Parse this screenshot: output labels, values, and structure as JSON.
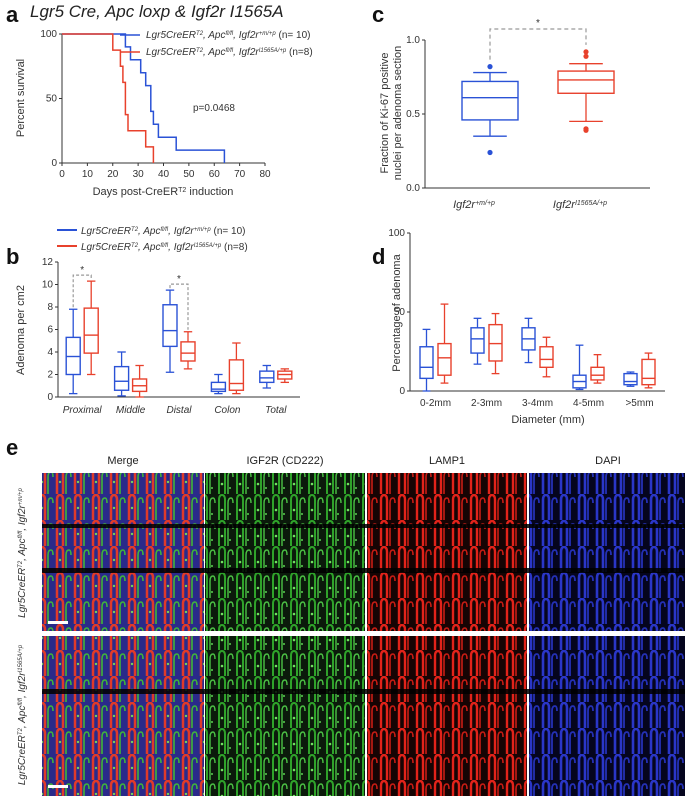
{
  "panel_a": {
    "letter": "a",
    "title": "Lgr5 Cre, Apc loxp & Igf2r I1565A",
    "ylabel": "Percent survival",
    "xlabel": "Days post-CreER",
    "xlabel_sup": "T2",
    "xlabel_suffix": " induction",
    "pvalue": "p=0.0468",
    "legend": [
      {
        "main": "Lgr5CreER",
        "sup1": "T2",
        "mid": ", Apc",
        "sup2": "fl/fl",
        "mid2": ", Igf2r",
        "sup3": "+m/+p",
        "tail": " (n= 10)",
        "color": "#2a52d6"
      },
      {
        "main": "Lgr5CreER",
        "sup1": "T2",
        "mid": ", Apc",
        "sup2": "fl/fl",
        "mid2": ", Igf2r",
        "sup3": "I1565A/+p",
        "tail": " (n=8)",
        "color": "#e8412c"
      }
    ]
  },
  "panel_b": {
    "letter": "b",
    "ylabel": "Adenoma per cm2",
    "legend": [
      {
        "main": "Lgr5CreER",
        "sup1": "T2",
        "mid": ", Apc",
        "sup2": "fl/fl",
        "mid2": ", Igf2r",
        "sup3": "+m/+p",
        "tail": " (n= 10)",
        "color": "#2a52d6"
      },
      {
        "main": "Lgr5CreER",
        "sup1": "T2",
        "mid": ", Apc",
        "sup2": "fl/fl",
        "mid2": ", Igf2r",
        "sup3": "I1565A/+p",
        "tail": " (n=8)",
        "color": "#e8412c"
      }
    ],
    "star": "*"
  },
  "panel_c": {
    "letter": "c",
    "ylabel_line1": "Fraction of Ki-67 positive",
    "ylabel_line2": "nuclei per adenoma section",
    "cat1_main": "Igf2r",
    "cat1_sup": "+m/+p",
    "cat2_main": "Igf2r",
    "cat2_sup": "I1565A/+p",
    "star": "*"
  },
  "panel_d": {
    "letter": "d",
    "ylabel": "Percentage of adenoma",
    "xlabel": "Diameter (mm)"
  },
  "panel_e": {
    "letter": "e",
    "columns": [
      "Merge",
      "IGF2R (CD222)",
      "LAMP1",
      "DAPI"
    ],
    "row_labels": [
      {
        "main": "Lgr5CreER",
        "sup1": "T2",
        "mid": ", Apc",
        "sup2": "fl/fl",
        "mid2": ", Igf2r",
        "sup3": "+m/+p"
      },
      {
        "main": "Lgr5CreER",
        "sup1": "T2",
        "mid": ", Apc",
        "sup2": "fl/fl",
        "mid2": ", Igf2r",
        "sup3": "I1565A/+p"
      }
    ]
  },
  "chart_data": [
    {
      "type": "line",
      "title": "Lgr5 Cre, Apc loxp & Igf2r I1565A",
      "xlabel": "Days post-CreERT2 induction",
      "ylabel": "Percent survival",
      "xlim": [
        0,
        80
      ],
      "ylim": [
        0,
        100
      ],
      "xticks": [
        0,
        10,
        20,
        30,
        40,
        50,
        60,
        70,
        80
      ],
      "yticks": [
        0,
        50,
        100
      ],
      "series": [
        {
          "name": "Lgr5CreERT2, Apcfl/fl, Igf2r+m/+p (n= 10)",
          "color": "#2a52d6",
          "steps": [
            [
              0,
              100
            ],
            [
              25,
              100
            ],
            [
              25,
              90
            ],
            [
              27,
              90
            ],
            [
              27,
              80
            ],
            [
              31,
              80
            ],
            [
              31,
              70
            ],
            [
              33,
              70
            ],
            [
              33,
              60
            ],
            [
              35,
              60
            ],
            [
              35,
              40
            ],
            [
              36,
              40
            ],
            [
              36,
              30
            ],
            [
              38,
              30
            ],
            [
              38,
              20
            ],
            [
              45,
              20
            ],
            [
              45,
              10
            ],
            [
              64,
              10
            ],
            [
              64,
              0
            ]
          ]
        },
        {
          "name": "Lgr5CreERT2, Apcfl/fl, Igf2rI1565A/+p (n=8)",
          "color": "#e8412c",
          "steps": [
            [
              0,
              100
            ],
            [
              20,
              100
            ],
            [
              20,
              87.5
            ],
            [
              23,
              87.5
            ],
            [
              23,
              75
            ],
            [
              24,
              75
            ],
            [
              24,
              62.5
            ],
            [
              25,
              62.5
            ],
            [
              25,
              37.5
            ],
            [
              26,
              37.5
            ],
            [
              26,
              25
            ],
            [
              33,
              25
            ],
            [
              33,
              12.5
            ],
            [
              36,
              12.5
            ],
            [
              36,
              0
            ]
          ]
        }
      ]
    },
    {
      "type": "box",
      "ylabel": "Adenoma per cm2",
      "categories": [
        "Proximal",
        "Middle",
        "Distal",
        "Colon",
        "Total"
      ],
      "ylim": [
        0,
        12
      ],
      "yticks": [
        0,
        2,
        4,
        6,
        8,
        10,
        12
      ],
      "series": [
        {
          "name": "Lgr5CreERT2, Apcfl/fl, Igf2r+m/+p (n= 10)",
          "color": "#2a52d6",
          "boxes": [
            [
              0.3,
              2.0,
              3.6,
              5.3,
              7.8
            ],
            [
              0.1,
              0.6,
              1.4,
              2.7,
              4.0
            ],
            [
              2.2,
              4.5,
              5.9,
              8.2,
              9.5
            ],
            [
              0.3,
              0.5,
              0.7,
              1.3,
              2.0
            ],
            [
              0.8,
              1.3,
              1.7,
              2.3,
              2.8
            ]
          ]
        },
        {
          "name": "Lgr5CreERT2, Apcfl/fl, Igf2rI1565A/+p (n=8)",
          "color": "#e8412c",
          "boxes": [
            [
              2.0,
              3.9,
              5.5,
              7.9,
              10.3
            ],
            [
              0.0,
              0.5,
              1.0,
              1.6,
              2.8
            ],
            [
              2.5,
              3.2,
              3.9,
              4.9,
              5.8
            ],
            [
              0.3,
              0.6,
              1.2,
              3.3,
              4.8
            ],
            [
              1.3,
              1.6,
              2.0,
              2.3,
              2.5
            ]
          ]
        }
      ],
      "significance": [
        {
          "category": "Proximal",
          "label": "*"
        },
        {
          "category": "Distal",
          "label": "*"
        }
      ]
    },
    {
      "type": "box",
      "ylabel": "Fraction of Ki-67 positive nuclei per adenoma section",
      "categories": [
        "Igf2r+m/+p",
        "Igf2rI1565A/+p"
      ],
      "ylim": [
        0,
        1.0
      ],
      "yticks": [
        0.0,
        0.5,
        1.0
      ],
      "series": [
        {
          "name": "Igf2r+m/+p",
          "color": "#2a52d6",
          "box": [
            0.35,
            0.46,
            0.61,
            0.72,
            0.78
          ],
          "outliers": [
            0.82,
            0.24
          ]
        },
        {
          "name": "Igf2rI1565A/+p",
          "color": "#e8412c",
          "box": [
            0.45,
            0.64,
            0.73,
            0.79,
            0.84
          ],
          "outliers": [
            0.92,
            0.89,
            0.4,
            0.39
          ]
        }
      ],
      "significance": [
        {
          "between": [
            "Igf2r+m/+p",
            "Igf2rI1565A/+p"
          ],
          "label": "*"
        }
      ]
    },
    {
      "type": "box",
      "ylabel": "Percentage of adenoma",
      "xlabel": "Diameter (mm)",
      "categories": [
        "0-2mm",
        "2-3mm",
        "3-4mm",
        "4-5mm",
        ">5mm"
      ],
      "ylim": [
        0,
        100
      ],
      "yticks": [
        0,
        50,
        100
      ],
      "series": [
        {
          "name": "Igf2r+m/+p",
          "color": "#2a52d6",
          "boxes": [
            [
              0,
              8,
              15,
              28,
              39
            ],
            [
              17,
              24,
              33,
              40,
              46
            ],
            [
              18,
              26,
              33,
              40,
              46
            ],
            [
              1,
              2,
              6,
              10,
              29
            ],
            [
              3,
              4,
              6,
              11,
              12
            ]
          ]
        },
        {
          "name": "Igf2rI1565A/+p",
          "color": "#e8412c",
          "boxes": [
            [
              5,
              10,
              21,
              30,
              55
            ],
            [
              11,
              19,
              30,
              42,
              49
            ],
            [
              9,
              15,
              20,
              28,
              34
            ],
            [
              5,
              7,
              10,
              15,
              23
            ],
            [
              2,
              4,
              8,
              20,
              24
            ]
          ]
        }
      ]
    }
  ]
}
